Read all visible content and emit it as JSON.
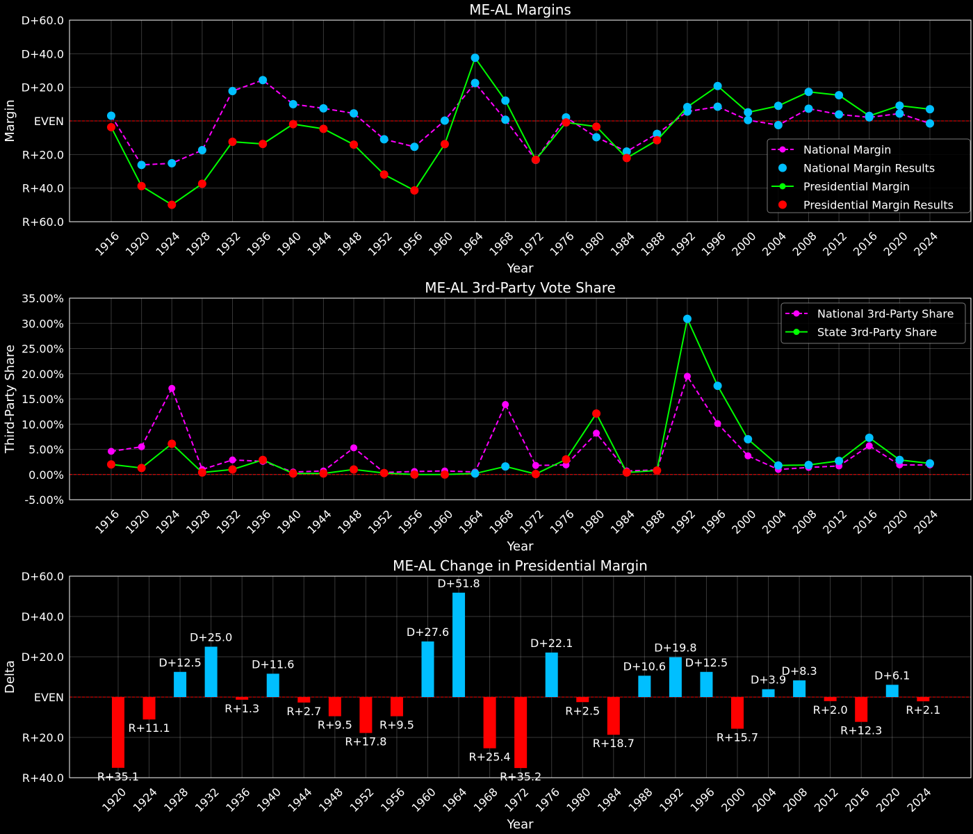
{
  "colors": {
    "background": "#000000",
    "national": "#ff00ff",
    "national_results": "#00bfff",
    "presidential": "#00ff00",
    "presidential_results": "#ff0000",
    "dem": "#00bfff",
    "rep": "#ff0000",
    "even_line": "#ff0000"
  },
  "chart_data": [
    {
      "type": "line",
      "title": "ME-AL Margins",
      "xlabel": "Year",
      "ylabel": "Margin",
      "ylim": [
        -60,
        60
      ],
      "yticks": [
        60,
        40,
        20,
        0,
        -20,
        -40,
        -60
      ],
      "ytick_labels": [
        "D+60.0",
        "D+40.0",
        "D+20.0",
        "EVEN",
        "R+20.0",
        "R+40.0",
        "R+60.0"
      ],
      "x": [
        1916,
        1920,
        1924,
        1928,
        1932,
        1936,
        1940,
        1944,
        1948,
        1952,
        1956,
        1960,
        1964,
        1968,
        1972,
        1976,
        1980,
        1984,
        1988,
        1992,
        1996,
        2000,
        2004,
        2008,
        2012,
        2016,
        2020,
        2024
      ],
      "grid": true,
      "legend_position": "center-right",
      "series": [
        {
          "name": "National Margin",
          "style": "dashed-marker",
          "color": "#ff00ff",
          "values": [
            3.1,
            -26.2,
            -25.2,
            -17.4,
            17.8,
            24.3,
            10.0,
            7.5,
            4.5,
            -10.9,
            -15.4,
            0.2,
            22.6,
            0.7,
            -23.2,
            2.1,
            -9.7,
            -18.2,
            -7.7,
            5.6,
            8.5,
            0.5,
            -2.5,
            7.3,
            3.9,
            2.1,
            4.4,
            -1.5
          ]
        },
        {
          "name": "National Margin Results",
          "style": "markers",
          "color": "#00bfff",
          "values": [
            3.1,
            -26.2,
            -25.2,
            -17.4,
            17.8,
            24.3,
            10.0,
            7.5,
            4.5,
            -10.9,
            -15.4,
            0.2,
            22.6,
            0.7,
            -23.2,
            2.1,
            -9.7,
            -18.2,
            -7.7,
            5.6,
            8.5,
            0.5,
            -2.5,
            7.3,
            3.9,
            2.1,
            4.4,
            -1.5
          ]
        },
        {
          "name": "Presidential Margin",
          "style": "solid",
          "color": "#00ff00",
          "values": [
            -3.7,
            -38.8,
            -49.9,
            -37.4,
            -12.4,
            -13.7,
            -1.9,
            -4.7,
            -14.1,
            -31.9,
            -41.4,
            -13.8,
            37.6,
            12.1,
            -23.1,
            -0.9,
            -3.4,
            -22.1,
            -11.5,
            8.3,
            20.8,
            5.1,
            9.0,
            17.3,
            15.3,
            3.0,
            9.1,
            7.0
          ]
        },
        {
          "name": "Presidential Margin Results",
          "style": "markers",
          "colors": [
            "#ff0000",
            "#ff0000",
            "#ff0000",
            "#ff0000",
            "#ff0000",
            "#ff0000",
            "#ff0000",
            "#ff0000",
            "#ff0000",
            "#ff0000",
            "#ff0000",
            "#ff0000",
            "#00bfff",
            "#00bfff",
            "#ff0000",
            "#ff0000",
            "#ff0000",
            "#ff0000",
            "#ff0000",
            "#00bfff",
            "#00bfff",
            "#00bfff",
            "#00bfff",
            "#00bfff",
            "#00bfff",
            "#00bfff",
            "#00bfff",
            "#00bfff"
          ],
          "values": [
            -3.7,
            -38.8,
            -49.9,
            -37.4,
            -12.4,
            -13.7,
            -1.9,
            -4.7,
            -14.1,
            -31.9,
            -41.4,
            -13.8,
            37.6,
            12.1,
            -23.1,
            -0.9,
            -3.4,
            -22.1,
            -11.5,
            8.3,
            20.8,
            5.1,
            9.0,
            17.3,
            15.3,
            3.0,
            9.1,
            7.0
          ]
        }
      ]
    },
    {
      "type": "line",
      "title": "ME-AL 3rd-Party Vote Share",
      "xlabel": "Year",
      "ylabel": "Third-Party Share",
      "ylim": [
        -5,
        35
      ],
      "yticks": [
        35,
        30,
        25,
        20,
        15,
        10,
        5,
        0,
        -5
      ],
      "ytick_labels": [
        "35.00%",
        "30.00%",
        "25.00%",
        "20.00%",
        "15.00%",
        "10.00%",
        "5.00%",
        "0.00%",
        "-5.00%"
      ],
      "x": [
        1916,
        1920,
        1924,
        1928,
        1932,
        1936,
        1940,
        1944,
        1948,
        1952,
        1956,
        1960,
        1964,
        1968,
        1972,
        1976,
        1980,
        1984,
        1988,
        1992,
        1996,
        2000,
        2004,
        2008,
        2012,
        2016,
        2020,
        2024
      ],
      "grid": true,
      "legend_position": "top-right",
      "series": [
        {
          "name": "National 3rd-Party Share",
          "style": "dashed-marker",
          "color": "#ff00ff",
          "values": [
            4.6,
            5.5,
            17.1,
            1.0,
            2.9,
            2.6,
            0.5,
            0.7,
            5.3,
            0.4,
            0.6,
            0.7,
            0.5,
            13.9,
            1.8,
            1.9,
            8.2,
            0.7,
            0.9,
            19.5,
            10.1,
            3.7,
            1.0,
            1.4,
            1.7,
            5.7,
            1.9,
            1.9
          ]
        },
        {
          "name": "State 3rd-Party Share",
          "style": "solid",
          "color": "#00ff00",
          "values": [
            2.0,
            1.3,
            6.1,
            0.4,
            1.0,
            2.9,
            0.2,
            0.2,
            1.0,
            0.3,
            0.0,
            0.0,
            0.2,
            1.6,
            0.1,
            3.0,
            12.1,
            0.4,
            0.8,
            30.9,
            17.6,
            7.0,
            1.8,
            1.9,
            2.7,
            7.3,
            2.9,
            2.2
          ]
        },
        {
          "name": "",
          "style": "markers",
          "colors": [
            "#ff0000",
            "#ff0000",
            "#ff0000",
            "#ff0000",
            "#ff0000",
            "#ff0000",
            "#ff0000",
            "#ff0000",
            "#ff0000",
            "#ff0000",
            "#ff0000",
            "#ff0000",
            "#00bfff",
            "#00bfff",
            "#ff0000",
            "#ff0000",
            "#ff0000",
            "#ff0000",
            "#ff0000",
            "#00bfff",
            "#00bfff",
            "#00bfff",
            "#00bfff",
            "#00bfff",
            "#00bfff",
            "#00bfff",
            "#00bfff",
            "#00bfff"
          ],
          "values": [
            2.0,
            1.3,
            6.1,
            0.4,
            1.0,
            2.9,
            0.2,
            0.2,
            1.0,
            0.3,
            0.0,
            0.0,
            0.2,
            1.6,
            0.1,
            3.0,
            12.1,
            0.4,
            0.8,
            30.9,
            17.6,
            7.0,
            1.8,
            1.9,
            2.7,
            7.3,
            2.9,
            2.2
          ]
        }
      ]
    },
    {
      "type": "bar",
      "title": "ME-AL Change in Presidential Margin",
      "xlabel": "Year",
      "ylabel": "Delta",
      "ylim": [
        -40,
        60
      ],
      "yticks": [
        60,
        40,
        20,
        0,
        -20,
        -40
      ],
      "ytick_labels": [
        "D+60.0",
        "D+40.0",
        "D+20.0",
        "EVEN",
        "R+20.0",
        "R+40.0"
      ],
      "grid": true,
      "categories": [
        1920,
        1924,
        1928,
        1932,
        1936,
        1940,
        1944,
        1948,
        1952,
        1956,
        1960,
        1964,
        1968,
        1972,
        1976,
        1980,
        1984,
        1988,
        1992,
        1996,
        2000,
        2004,
        2008,
        2012,
        2016,
        2020,
        2024
      ],
      "values": [
        -35.1,
        -11.1,
        12.5,
        25.0,
        -1.3,
        11.6,
        -2.7,
        -9.5,
        -17.8,
        -9.5,
        27.6,
        51.8,
        -25.4,
        -35.2,
        22.1,
        -2.5,
        -18.7,
        10.6,
        19.8,
        12.5,
        -15.7,
        3.9,
        8.3,
        -2.0,
        -12.3,
        6.1,
        -2.1
      ],
      "value_labels": [
        "R+35.1",
        "R+11.1",
        "D+12.5",
        "D+25.0",
        "R+1.3",
        "D+11.6",
        "R+2.7",
        "R+9.5",
        "R+17.8",
        "R+9.5",
        "D+27.6",
        "D+51.8",
        "R+25.4",
        "R+35.2",
        "D+22.1",
        "R+2.5",
        "R+18.7",
        "D+10.6",
        "D+19.8",
        "D+12.5",
        "R+15.7",
        "D+3.9",
        "D+8.3",
        "R+2.0",
        "R+12.3",
        "D+6.1",
        "R+2.1"
      ]
    }
  ]
}
